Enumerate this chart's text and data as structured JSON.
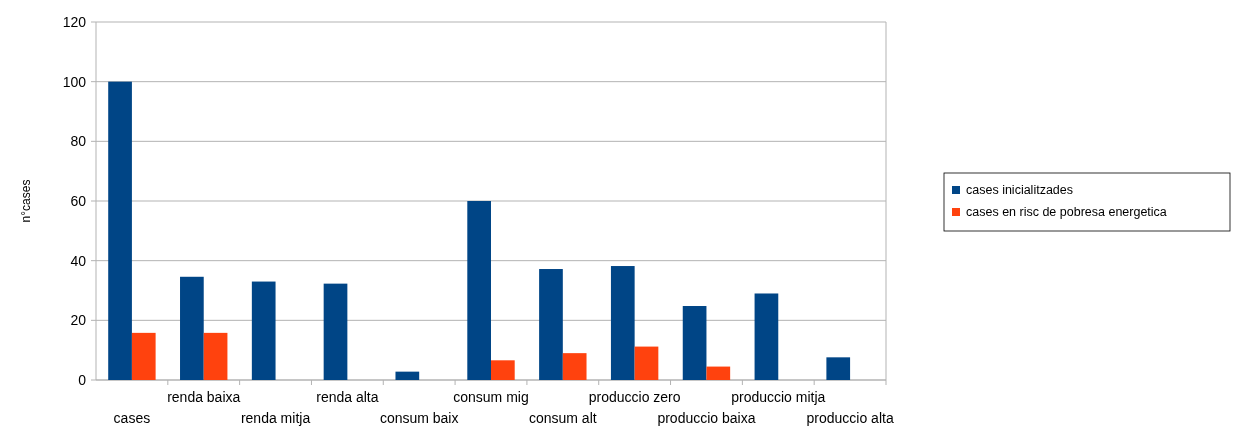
{
  "chart_data": {
    "type": "bar",
    "ylabel": "n°cases",
    "categories": [
      "cases",
      "renda baixa",
      "renda mitja",
      "renda alta",
      "consum baix",
      "consum mig",
      "consum alt",
      "produccio zero",
      "produccio baixa",
      "produccio mitja",
      "produccio alta"
    ],
    "series": [
      {
        "name": "cases inicialitzades",
        "color": "#004586",
        "values": [
          100,
          34.6,
          33,
          32.3,
          2.8,
          60,
          37.2,
          38.2,
          24.8,
          29,
          7.6
        ]
      },
      {
        "name": "cases en risc de pobresa energetica",
        "color": "#ff420e",
        "values": [
          15.8,
          15.8,
          0,
          0,
          0,
          6.6,
          9,
          11.2,
          4.5,
          0,
          0
        ]
      }
    ],
    "ylim": [
      0,
      120
    ],
    "yticks": [
      0,
      20,
      40,
      60,
      80,
      100,
      120
    ],
    "grid": "y",
    "legend": "right"
  }
}
